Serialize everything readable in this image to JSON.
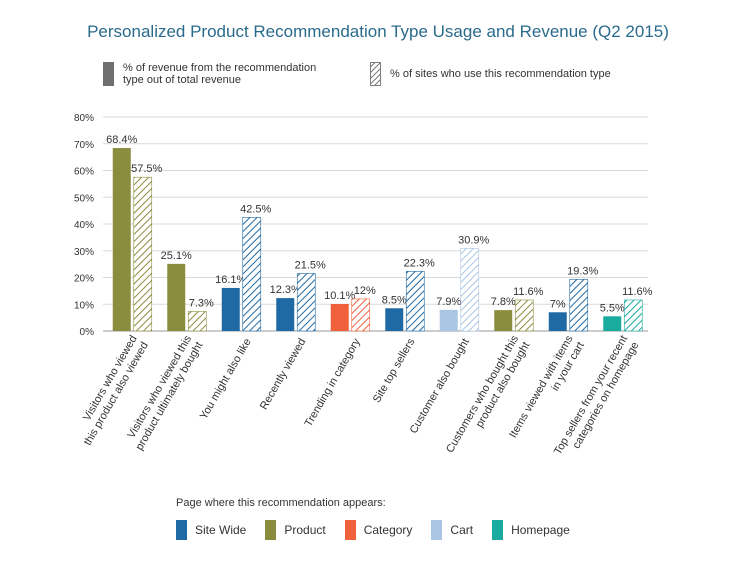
{
  "title": "Personalized Product Recommendation Type Usage and Revenue (Q2 2015)",
  "top_legend": {
    "revenue_label": "% of revenue from the recommendation\ntype out of total revenue",
    "sites_label": "% of sites who use this recommendation type"
  },
  "bottom_legend": {
    "title": "Page where this recommendation appears:",
    "items": [
      {
        "label": "Site Wide",
        "color": "#1f6aa5"
      },
      {
        "label": "Product",
        "color": "#8a8c3e"
      },
      {
        "label": "Category",
        "color": "#f0603a"
      },
      {
        "label": "Cart",
        "color": "#a9c5e3"
      },
      {
        "label": "Homepage",
        "color": "#1aab9f"
      }
    ]
  },
  "chart_data": {
    "type": "bar",
    "title": "Personalized Product Recommendation Type Usage and Revenue (Q2 2015)",
    "ylim": [
      0,
      80
    ],
    "y_ticks": [
      "0%",
      "10%",
      "20%",
      "30%",
      "40%",
      "50%",
      "60%",
      "70%",
      "80%"
    ],
    "grid": true,
    "categories": [
      {
        "lines": [
          "Visitors who viewed",
          "this product also viewed"
        ],
        "page": "Product"
      },
      {
        "lines": [
          "Visitors who viewed this",
          "product ultimately bought"
        ],
        "page": "Product"
      },
      {
        "lines": [
          "You might also like"
        ],
        "page": "Site Wide"
      },
      {
        "lines": [
          "Recently viewed"
        ],
        "page": "Site Wide"
      },
      {
        "lines": [
          "Trending in category"
        ],
        "page": "Category"
      },
      {
        "lines": [
          "Site top sellers"
        ],
        "page": "Site Wide"
      },
      {
        "lines": [
          "Customer also bought"
        ],
        "page": "Cart"
      },
      {
        "lines": [
          "Customers who bought this",
          "product also bought"
        ],
        "page": "Product"
      },
      {
        "lines": [
          "Items viewed with items",
          "in your cart"
        ],
        "page": "Site Wide"
      },
      {
        "lines": [
          "Top sellers from your recent",
          "categories on homepage"
        ],
        "page": "Homepage"
      }
    ],
    "series": [
      {
        "name": "% of revenue from the recommendation type out of total revenue",
        "style": "solid",
        "values": [
          68.4,
          25.1,
          16.1,
          12.3,
          10.1,
          8.5,
          7.9,
          7.8,
          7,
          5.5
        ],
        "labels": [
          "68.4%",
          "25.1%",
          "16.1%",
          "12.3%",
          "10.1%",
          "8.5%",
          "7.9%",
          "7.8%",
          "7%",
          "5.5%"
        ]
      },
      {
        "name": "% of sites who use this recommendation type",
        "style": "hatched",
        "values": [
          57.5,
          7.3,
          42.5,
          21.5,
          12,
          22.3,
          30.9,
          11.6,
          19.3,
          11.6
        ],
        "labels": [
          "57.5%",
          "7.3%",
          "42.5%",
          "21.5%",
          "12%",
          "22.3%",
          "30.9%",
          "11.6%",
          "19.3%",
          "11.6%"
        ]
      }
    ]
  }
}
